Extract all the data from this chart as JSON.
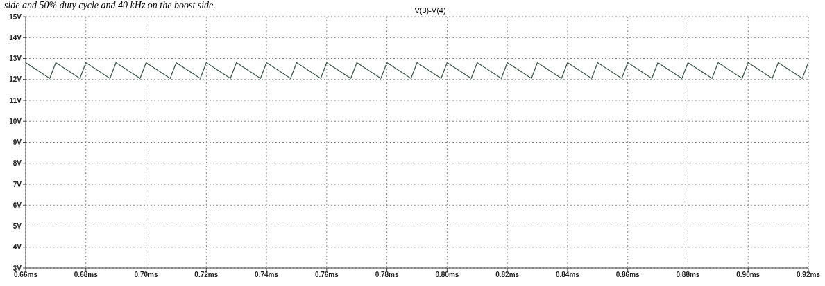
{
  "chart_data": {
    "type": "line",
    "title": "V(3)-V(4)",
    "annotations": [
      "side and 50% duty cycle and 40 kHz on the boost side."
    ],
    "x": [
      0.66,
      0.668,
      0.67,
      0.678,
      0.68,
      0.688,
      0.69,
      0.698,
      0.7,
      0.708,
      0.71,
      0.718,
      0.72,
      0.728,
      0.73,
      0.738,
      0.74,
      0.748,
      0.75,
      0.758,
      0.76,
      0.768,
      0.77,
      0.778,
      0.78,
      0.788,
      0.79,
      0.798,
      0.8,
      0.808,
      0.81,
      0.818,
      0.82,
      0.828,
      0.83,
      0.838,
      0.84,
      0.848,
      0.85,
      0.858,
      0.86,
      0.868,
      0.87,
      0.878,
      0.88,
      0.888,
      0.89,
      0.898,
      0.9,
      0.908,
      0.91,
      0.918,
      0.92
    ],
    "series": [
      {
        "color": "#3d5a4c",
        "values": [
          12.8,
          12.05,
          12.8,
          12.05,
          12.8,
          12.05,
          12.8,
          12.05,
          12.8,
          12.05,
          12.8,
          12.05,
          12.8,
          12.05,
          12.8,
          12.05,
          12.8,
          12.05,
          12.8,
          12.05,
          12.8,
          12.05,
          12.8,
          12.05,
          12.8,
          12.05,
          12.8,
          12.05,
          12.8,
          12.05,
          12.8,
          12.05,
          12.8,
          12.05,
          12.8,
          12.05,
          12.8,
          12.05,
          12.8,
          12.05,
          12.8,
          12.05,
          12.8,
          12.05,
          12.8,
          12.05,
          12.8,
          12.05,
          12.8,
          12.05,
          12.8,
          12.05,
          12.8
        ]
      }
    ],
    "xlim": [
      0.66,
      0.92
    ],
    "xticks": [
      {
        "value": 0.66,
        "label": "0.66ms"
      },
      {
        "value": 0.68,
        "label": "0.68ms"
      },
      {
        "value": 0.7,
        "label": "0.70ms"
      },
      {
        "value": 0.72,
        "label": "0.72ms"
      },
      {
        "value": 0.74,
        "label": "0.74ms"
      },
      {
        "value": 0.76,
        "label": "0.76ms"
      },
      {
        "value": 0.78,
        "label": "0.78ms"
      },
      {
        "value": 0.8,
        "label": "0.80ms"
      },
      {
        "value": 0.82,
        "label": "0.82ms"
      },
      {
        "value": 0.84,
        "label": "0.84ms"
      },
      {
        "value": 0.86,
        "label": "0.86ms"
      },
      {
        "value": 0.88,
        "label": "0.88ms"
      },
      {
        "value": 0.9,
        "label": "0.90ms"
      },
      {
        "value": 0.92,
        "label": "0.92ms"
      }
    ],
    "ylim": [
      3,
      15
    ],
    "yticks": [
      {
        "value": 3,
        "label": "3V"
      },
      {
        "value": 4,
        "label": "4V"
      },
      {
        "value": 5,
        "label": "5V"
      },
      {
        "value": 6,
        "label": "6V"
      },
      {
        "value": 7,
        "label": "7V"
      },
      {
        "value": 8,
        "label": "8V"
      },
      {
        "value": 9,
        "label": "9V"
      },
      {
        "value": 10,
        "label": "10V"
      },
      {
        "value": 11,
        "label": "11V"
      },
      {
        "value": 12,
        "label": "12V"
      },
      {
        "value": 13,
        "label": "13V"
      },
      {
        "value": 14,
        "label": "14V"
      },
      {
        "value": 15,
        "label": "15V"
      }
    ],
    "grid": true,
    "line_style": "solid",
    "marker": "none"
  }
}
